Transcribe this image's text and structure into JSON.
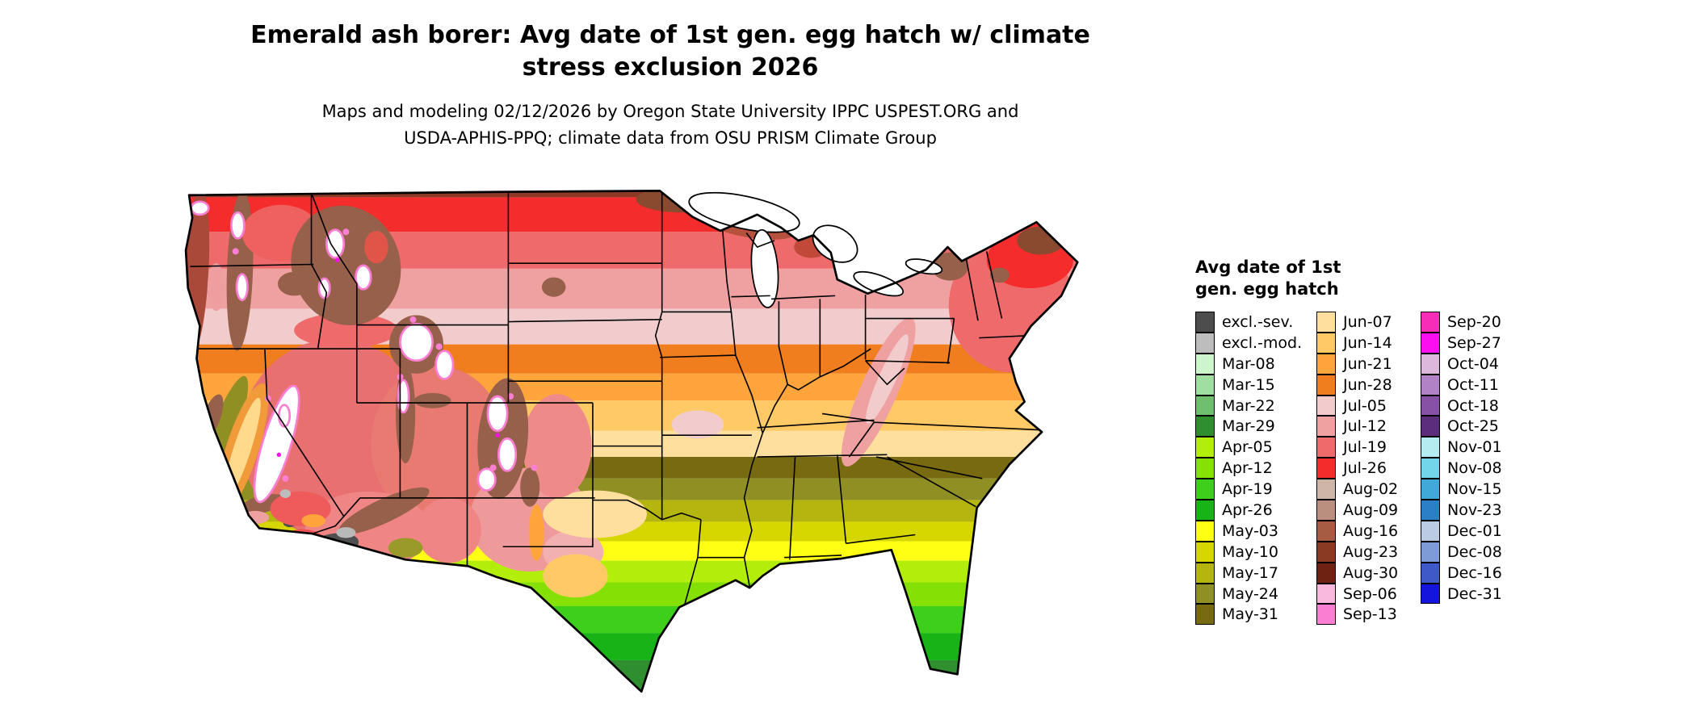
{
  "title": {
    "line1": "Emerald ash borer: Avg date of 1st gen. egg hatch w/ climate",
    "line2": "stress exclusion 2026"
  },
  "subtitle": {
    "line1": "Maps and modeling 02/12/2026 by Oregon State University IPPC USPEST.ORG and",
    "line2": "USDA-APHIS-PPQ; climate data from OSU PRISM Climate Group"
  },
  "map": {
    "region": "Continental United States with state borders and Great Lakes",
    "kind": "choropleth raster of average first-generation egg hatch date"
  },
  "legend": {
    "title_line1": "Avg date of 1st",
    "title_line2": "gen. egg hatch",
    "columns": [
      [
        {
          "label": "excl.-sev.",
          "color": "#4d4d4d"
        },
        {
          "label": "excl.-mod.",
          "color": "#bdbdbd"
        },
        {
          "label": "Mar-08",
          "color": "#ccf5cc"
        },
        {
          "label": "Mar-15",
          "color": "#9fdf9f"
        },
        {
          "label": "Mar-22",
          "color": "#6fbf6f"
        },
        {
          "label": "Mar-29",
          "color": "#2f8f2f"
        },
        {
          "label": "Apr-05",
          "color": "#b2ee09"
        },
        {
          "label": "Apr-12",
          "color": "#84e005"
        },
        {
          "label": "Apr-19",
          "color": "#3ecf1c"
        },
        {
          "label": "Apr-26",
          "color": "#17b317"
        },
        {
          "label": "May-03",
          "color": "#ffff14"
        },
        {
          "label": "May-10",
          "color": "#d6d600"
        },
        {
          "label": "May-17",
          "color": "#b5b50f"
        },
        {
          "label": "May-24",
          "color": "#8f8f24"
        },
        {
          "label": "May-31",
          "color": "#786a10"
        }
      ],
      [
        {
          "label": "Jun-07",
          "color": "#ffdf9e"
        },
        {
          "label": "Jun-14",
          "color": "#ffc966"
        },
        {
          "label": "Jun-21",
          "color": "#ffa53c"
        },
        {
          "label": "Jun-28",
          "color": "#f07d1e"
        },
        {
          "label": "Jul-05",
          "color": "#f2cccc"
        },
        {
          "label": "Jul-12",
          "color": "#efa0a0"
        },
        {
          "label": "Jul-19",
          "color": "#ef6a6a"
        },
        {
          "label": "Jul-26",
          "color": "#f42c2c"
        },
        {
          "label": "Aug-02",
          "color": "#cdb6a8"
        },
        {
          "label": "Aug-09",
          "color": "#bb8f7f"
        },
        {
          "label": "Aug-16",
          "color": "#a65c43"
        },
        {
          "label": "Aug-23",
          "color": "#8a3a22"
        },
        {
          "label": "Aug-30",
          "color": "#6e2312"
        },
        {
          "label": "Sep-06",
          "color": "#f9b8de"
        },
        {
          "label": "Sep-13",
          "color": "#fa7fd2"
        }
      ],
      [
        {
          "label": "Sep-20",
          "color": "#f72db8"
        },
        {
          "label": "Sep-27",
          "color": "#fb0ef0"
        },
        {
          "label": "Oct-04",
          "color": "#dcb8dc"
        },
        {
          "label": "Oct-11",
          "color": "#b183c6"
        },
        {
          "label": "Oct-18",
          "color": "#8751a5"
        },
        {
          "label": "Oct-25",
          "color": "#5c2d7a"
        },
        {
          "label": "Nov-01",
          "color": "#b5ecf2"
        },
        {
          "label": "Nov-08",
          "color": "#72d5ea"
        },
        {
          "label": "Nov-15",
          "color": "#41a8da"
        },
        {
          "label": "Nov-23",
          "color": "#2b7fc4"
        },
        {
          "label": "Dec-01",
          "color": "#bccbe4"
        },
        {
          "label": "Dec-08",
          "color": "#7e9bd8"
        },
        {
          "label": "Dec-16",
          "color": "#4059c8"
        },
        {
          "label": "Dec-31",
          "color": "#1414dc"
        }
      ]
    ]
  }
}
